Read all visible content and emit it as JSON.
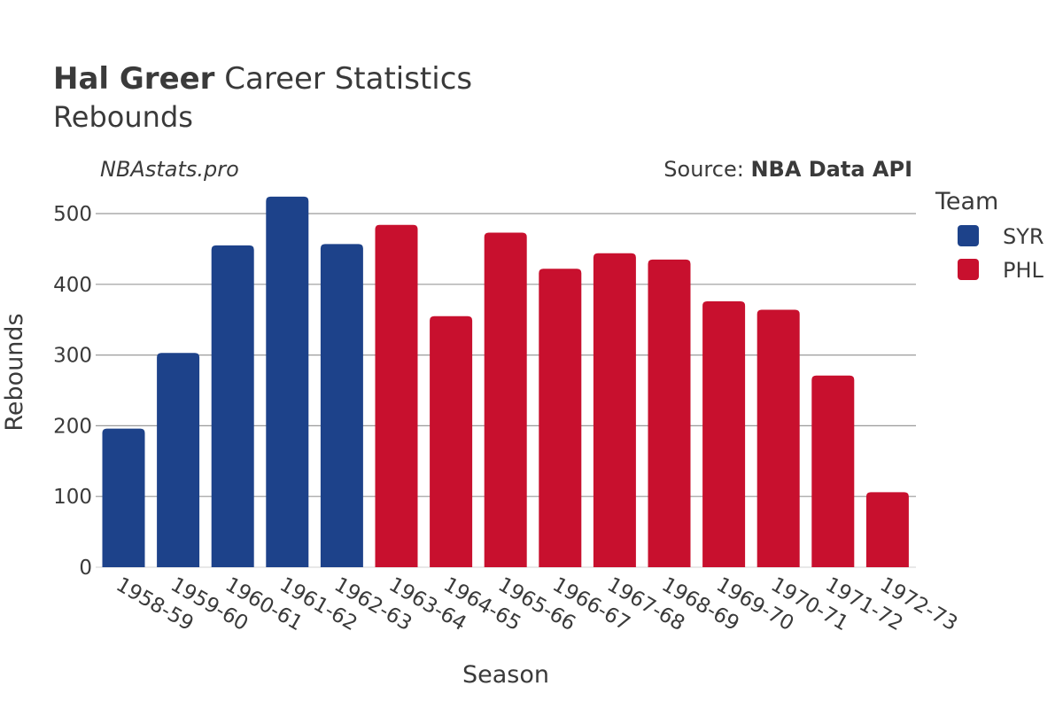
{
  "title": {
    "player": "Hal Greer",
    "rest": " Career Statistics",
    "subtitle": "Rebounds"
  },
  "watermark": "NBAstats.pro",
  "source": {
    "prefix": "Source: ",
    "name": "NBA Data API"
  },
  "legend": {
    "title": "Team",
    "items": [
      {
        "label": "SYR",
        "color": "#1d428a"
      },
      {
        "label": "PHL",
        "color": "#c8102e"
      }
    ]
  },
  "chart_data": {
    "type": "bar",
    "title": "Hal Greer Career Statistics",
    "subtitle": "Rebounds",
    "xlabel": "Season",
    "ylabel": "Rebounds",
    "ylim": [
      0,
      540
    ],
    "yticks": [
      0,
      100,
      200,
      300,
      400,
      500
    ],
    "grid": true,
    "legend_position": "right",
    "categories": [
      "1958-59",
      "1959-60",
      "1960-61",
      "1961-62",
      "1962-63",
      "1963-64",
      "1964-65",
      "1965-66",
      "1966-67",
      "1967-68",
      "1968-69",
      "1969-70",
      "1970-71",
      "1971-72",
      "1972-73"
    ],
    "teams": [
      "SYR",
      "SYR",
      "SYR",
      "SYR",
      "SYR",
      "PHL",
      "PHL",
      "PHL",
      "PHL",
      "PHL",
      "PHL",
      "PHL",
      "PHL",
      "PHL",
      "PHL"
    ],
    "values": [
      196,
      303,
      455,
      524,
      457,
      484,
      355,
      473,
      422,
      444,
      435,
      376,
      364,
      271,
      106
    ]
  }
}
